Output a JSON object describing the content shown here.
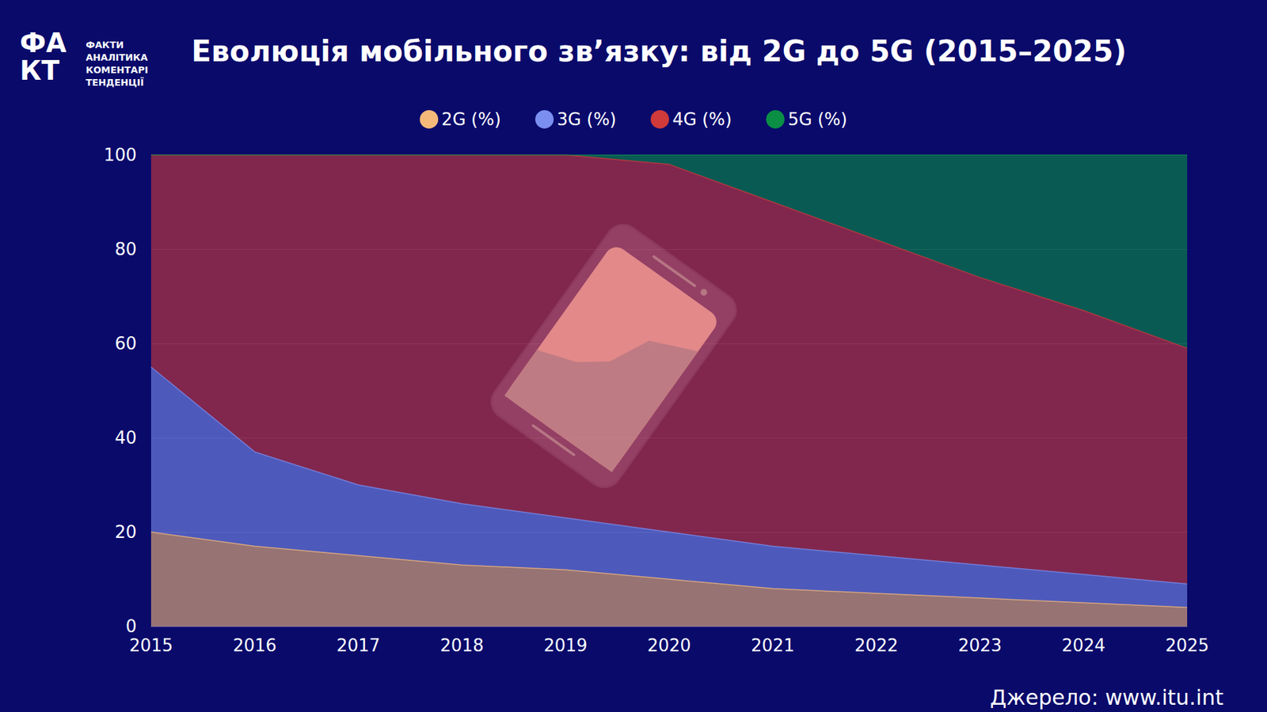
{
  "chart_data": {
    "type": "area",
    "title": "Еволюція мобільного зв’язку: від 2G до 5G (2015–2025)",
    "source": "Джерело: www.itu.int",
    "logo_mark": "ФАКТ",
    "logo_text": [
      "ФАКТИ",
      "АНАЛІТИКА",
      "КОМЕНТАРІ",
      "ТЕНДЕНЦІЇ"
    ],
    "categories": [
      "2015",
      "2016",
      "2017",
      "2018",
      "2019",
      "2020",
      "2021",
      "2022",
      "2023",
      "2024",
      "2025"
    ],
    "series": [
      {
        "name": "2G (%)",
        "color": "#f5b97a",
        "values": [
          20,
          17,
          15,
          13,
          12,
          10,
          8,
          7,
          6,
          5,
          4
        ]
      },
      {
        "name": "3G (%)",
        "color": "#7b8ff0",
        "values": [
          35,
          20,
          15,
          13,
          11,
          10,
          9,
          8,
          7,
          6,
          5
        ]
      },
      {
        "name": "4G (%)",
        "color": "#d03a3a",
        "values": [
          45,
          63,
          70,
          74,
          77,
          78,
          73,
          67,
          61,
          56,
          50
        ]
      },
      {
        "name": "5G (%)",
        "color": "#0a8f45",
        "values": [
          0,
          0,
          0,
          0,
          0,
          2,
          10,
          18,
          26,
          33,
          41
        ]
      }
    ],
    "ylim": [
      0,
      100
    ],
    "yticks": [
      0,
      20,
      40,
      60,
      80,
      100
    ],
    "stacked": true,
    "grid": true,
    "legend": "top"
  }
}
